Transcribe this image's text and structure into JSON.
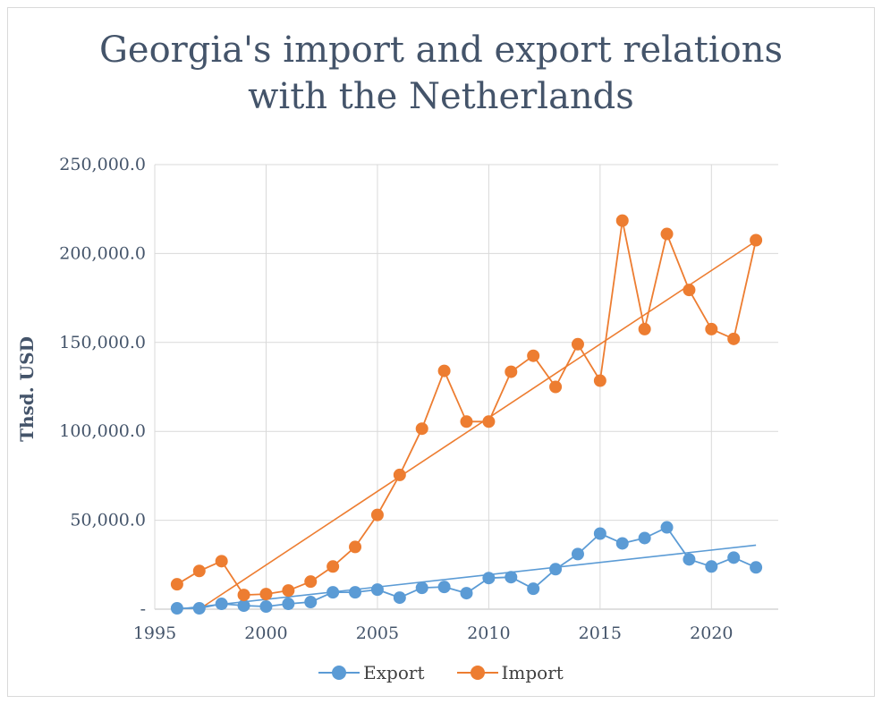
{
  "chart_data": {
    "type": "line",
    "title_lines": [
      "Georgia's import and export relations",
      "with the Netherlands"
    ],
    "xlabel": "",
    "ylabel": "Thsd. USD",
    "xlim": [
      1996,
      2022
    ],
    "ylim": [
      0,
      250000
    ],
    "x_ticks": [
      "1995",
      "2000",
      "2005",
      "2010",
      "2015",
      "2020"
    ],
    "y_ticks": [
      "-",
      "50,000.0",
      "100,000.0",
      "150,000.0",
      "200,000.0",
      "250,000.0"
    ],
    "grid": true,
    "legend_position": "bottom",
    "x": [
      1996,
      1997,
      1998,
      1999,
      2000,
      2001,
      2002,
      2003,
      2004,
      2005,
      2006,
      2007,
      2008,
      2009,
      2010,
      2011,
      2012,
      2013,
      2014,
      2015,
      2016,
      2017,
      2018,
      2019,
      2020,
      2021,
      2022
    ],
    "series": [
      {
        "name": "Export",
        "color": "#5b9bd5",
        "values": [
          500,
          500,
          3000,
          2000,
          1500,
          3000,
          4000,
          9500,
          9500,
          11000,
          6500,
          12000,
          12500,
          9000,
          17500,
          18000,
          11500,
          22500,
          31000,
          42500,
          37000,
          40000,
          46000,
          28000,
          24000,
          29000,
          23500
        ],
        "trendline": {
          "type": "linear",
          "from": [
            1996,
            0
          ],
          "to": [
            2022,
            36000
          ]
        }
      },
      {
        "name": "Import",
        "color": "#ed7d31",
        "values": [
          14000,
          21500,
          27000,
          8000,
          8500,
          10500,
          15500,
          24000,
          35000,
          53000,
          75500,
          101500,
          134000,
          105500,
          105500,
          133500,
          142500,
          125000,
          149000,
          128500,
          218500,
          157500,
          211000,
          179500,
          157500,
          152000,
          207500
        ],
        "trendline": {
          "type": "linear",
          "from": [
            1997,
            0
          ],
          "to": [
            2022,
            207000
          ]
        }
      }
    ]
  }
}
